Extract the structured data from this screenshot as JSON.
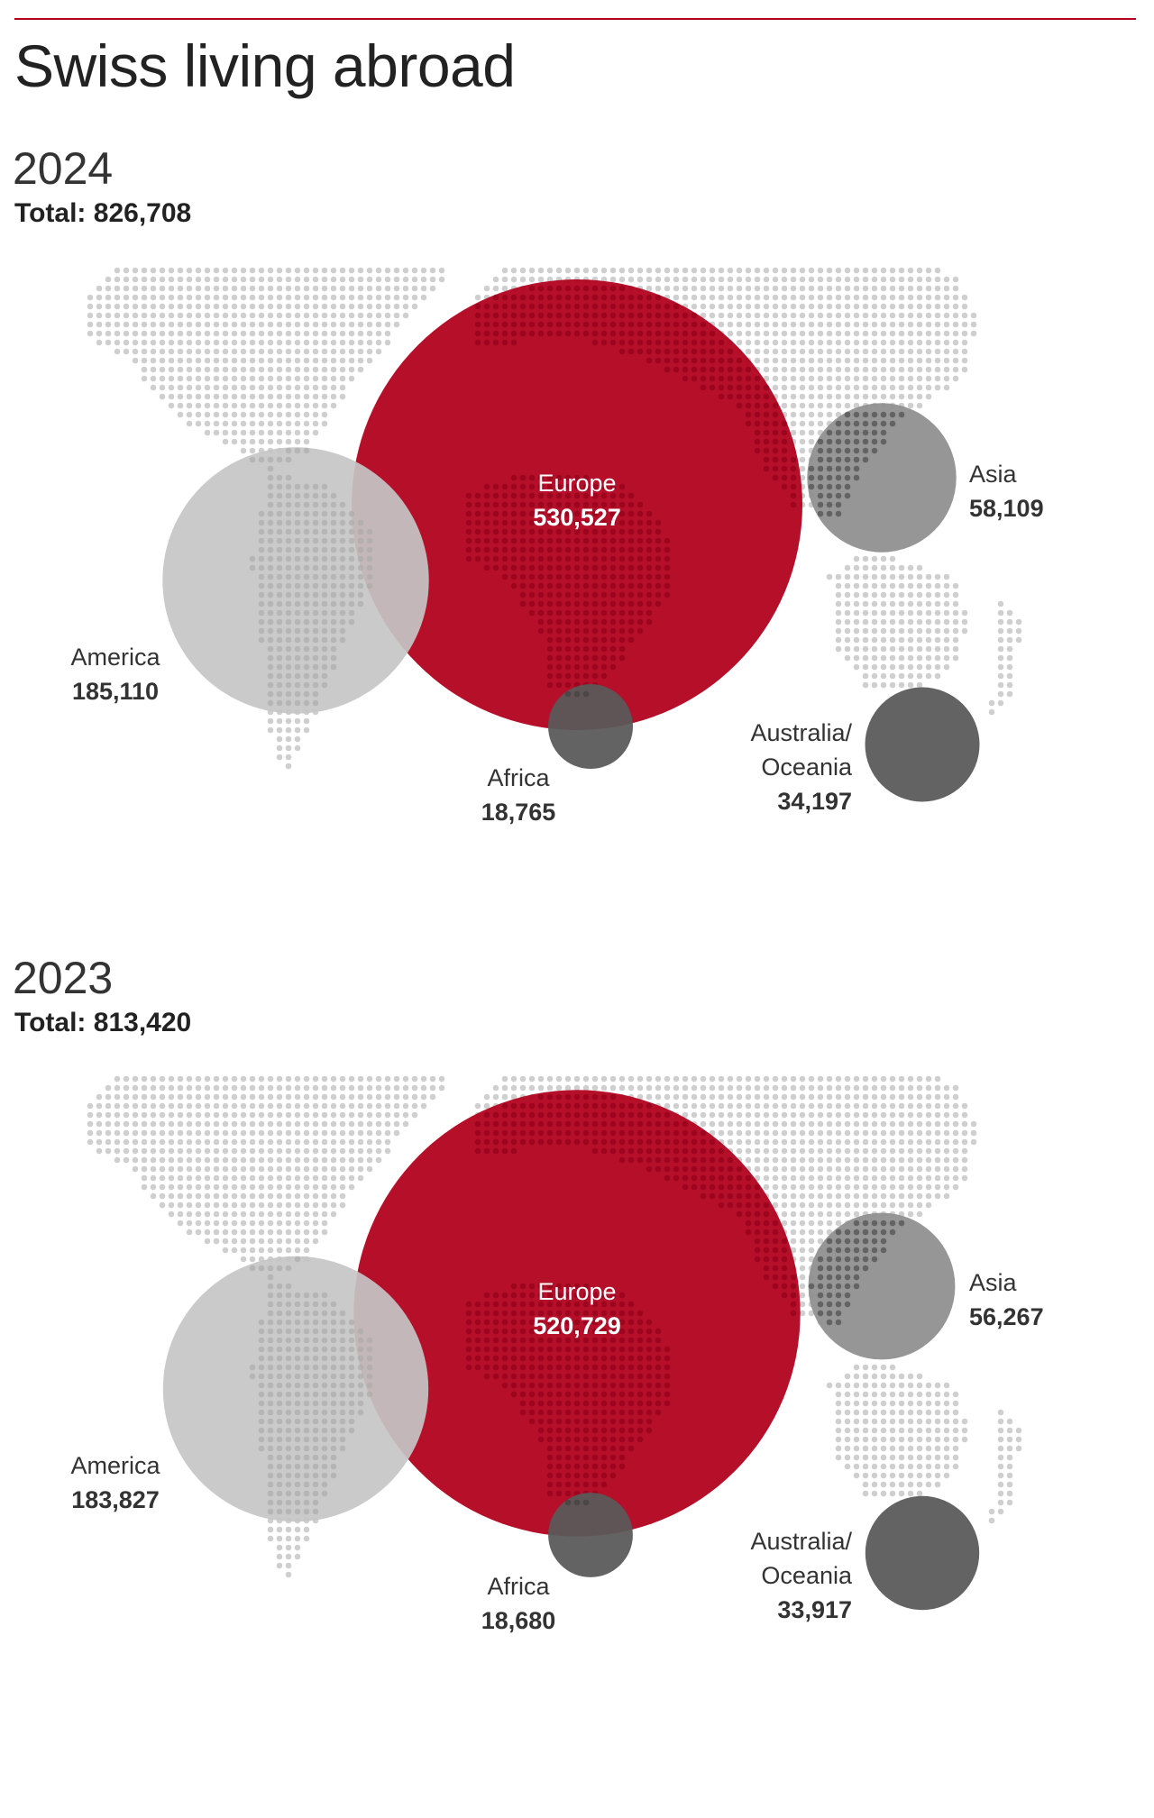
{
  "title": "Swiss living abroad",
  "colors": {
    "rule": "#b5001c",
    "europe": "#b0001d",
    "america": "#c6c6c6",
    "asia": "#8f8f8f",
    "africa": "#595959",
    "oceania": "#595959",
    "map_dots": "#cfcfcf"
  },
  "chart_data": [
    {
      "type": "bubble-map",
      "year": "2024",
      "total_label": "Total:",
      "total": "826,708",
      "regions": [
        {
          "name": "Europe",
          "value": 530527,
          "value_label": "530,527",
          "color": "#b0001d"
        },
        {
          "name": "America",
          "value": 185110,
          "value_label": "185,110",
          "color": "#c6c6c6"
        },
        {
          "name": "Asia",
          "value": 58109,
          "value_label": "58,109",
          "color": "#8f8f8f"
        },
        {
          "name": "Africa",
          "value": 18765,
          "value_label": "18,765",
          "color": "#595959"
        },
        {
          "name": "Australia/ Oceania",
          "value": 34197,
          "value_label": "34,197",
          "color": "#595959"
        }
      ]
    },
    {
      "type": "bubble-map",
      "year": "2023",
      "total_label": "Total:",
      "total": "813,420",
      "regions": [
        {
          "name": "Europe",
          "value": 520729,
          "value_label": "520,729",
          "color": "#b0001d"
        },
        {
          "name": "America",
          "value": 183827,
          "value_label": "183,827",
          "color": "#c6c6c6"
        },
        {
          "name": "Asia",
          "value": 56267,
          "value_label": "56,267",
          "color": "#8f8f8f"
        },
        {
          "name": "Africa",
          "value": 18680,
          "value_label": "18,680",
          "color": "#595959"
        },
        {
          "name": "Australia/ Oceania",
          "value": 33917,
          "value_label": "33,917",
          "color": "#595959"
        }
      ]
    }
  ]
}
